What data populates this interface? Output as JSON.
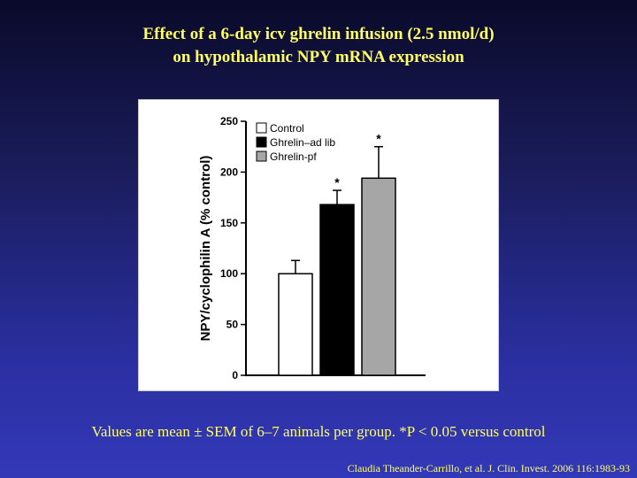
{
  "slide": {
    "title_line1": "Effect of a 6-day icv ghrelin infusion (2.5 nmol/d)",
    "title_line2": "on hypothalamic NPY mRNA expression",
    "caption": "Values are mean ± SEM of 6–7 animals per group. *P < 0.05 versus control",
    "citation": "Claudia Theander-Carrillo, et al. J. Clin. Invest. 2006 116:1983-93"
  },
  "colors": {
    "title_text": "#ffff66",
    "control_fill": "#ffffff",
    "ghrelin_ad_lib_fill": "#000000",
    "ghrelin_pf_fill": "#a6a6a6"
  },
  "chart_data": {
    "type": "bar",
    "title": "",
    "xlabel": "",
    "ylabel": "NPY/cyclophilin A (% control)",
    "ylim": [
      0,
      250
    ],
    "yticks": [
      0,
      50,
      100,
      150,
      200,
      250
    ],
    "legend_position": "top-left",
    "grid": false,
    "categories": [
      "Control",
      "Ghrelin–ad lib",
      "Ghrelin-pf"
    ],
    "series": [
      {
        "name": "Control",
        "value": 100,
        "error": 13,
        "significant": false,
        "marker": ""
      },
      {
        "name": "Ghrelin–ad lib",
        "value": 168,
        "error": 14,
        "significant": true,
        "marker": "*"
      },
      {
        "name": "Ghrelin-pf",
        "value": 194,
        "error": 31,
        "significant": true,
        "marker": "*"
      }
    ]
  }
}
